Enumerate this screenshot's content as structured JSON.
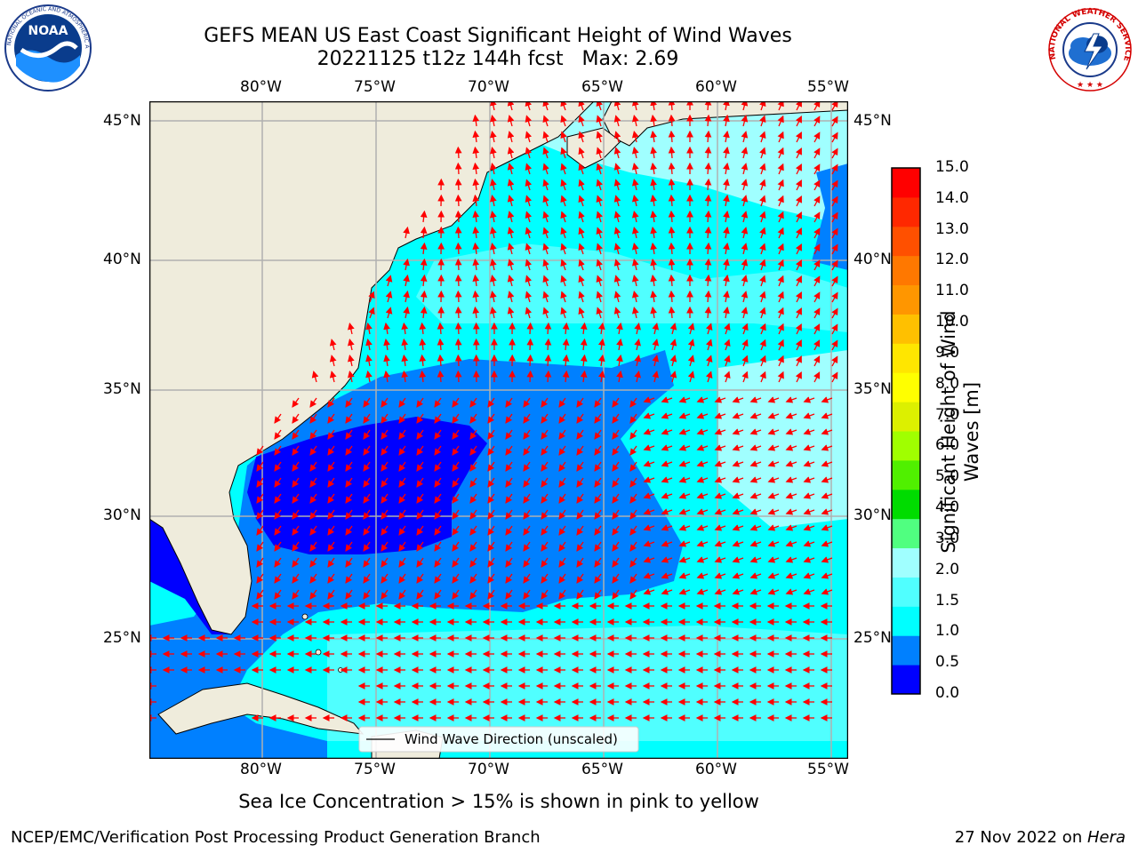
{
  "header": {
    "title_line1": "GEFS MEAN US East Coast Significant Height of Wind Waves",
    "title_line2": "20221125 t12z 144h fcst   Max: 2.69"
  },
  "logos": {
    "noaa_text": "NOAA",
    "noaa_ring_text": "NATIONAL OCEANIC AND ATMOSPHERIC ADMINISTRATION · U.S. DEPARTMENT OF COMMERCE",
    "nws_ring_text": "NATIONAL WEATHER SERVICE"
  },
  "map": {
    "lon_labels": [
      "80°W",
      "75°W",
      "70°W",
      "65°W",
      "60°W",
      "55°W"
    ],
    "lat_labels": [
      "45°N",
      "40°N",
      "35°N",
      "30°N",
      "25°N"
    ],
    "legend_label": "Wind Wave Direction (unscaled)",
    "land_color": "#efecdc",
    "arrow_color": "#ff0000"
  },
  "colorbar": {
    "label_line1": "Significant Height of Wind",
    "label_line2": "Waves [m]",
    "ticks": [
      "0.0",
      "0.5",
      "1.0",
      "1.5",
      "2.0",
      "3.0",
      "4.0",
      "5.0",
      "6.0",
      "7.0",
      "8.0",
      "9.0",
      "10.0",
      "11.0",
      "12.0",
      "13.0",
      "14.0",
      "15.0"
    ],
    "colors": [
      "#0000ff",
      "#0080ff",
      "#00ffff",
      "#50ffff",
      "#a0ffff",
      "#50ff80",
      "#00dc00",
      "#50f000",
      "#a0ff00",
      "#dcf000",
      "#ffff00",
      "#ffe600",
      "#ffc000",
      "#ff9600",
      "#ff7800",
      "#ff5000",
      "#ff2800",
      "#ff0000"
    ]
  },
  "notes": {
    "sea_ice": "Sea Ice Concentration > 15% is shown in pink to yellow"
  },
  "footer": {
    "left": "NCEP/EMC/Verification Post Processing Product Generation Branch",
    "right_prefix": "27 Nov 2022 on ",
    "right_host": "Hera"
  }
}
